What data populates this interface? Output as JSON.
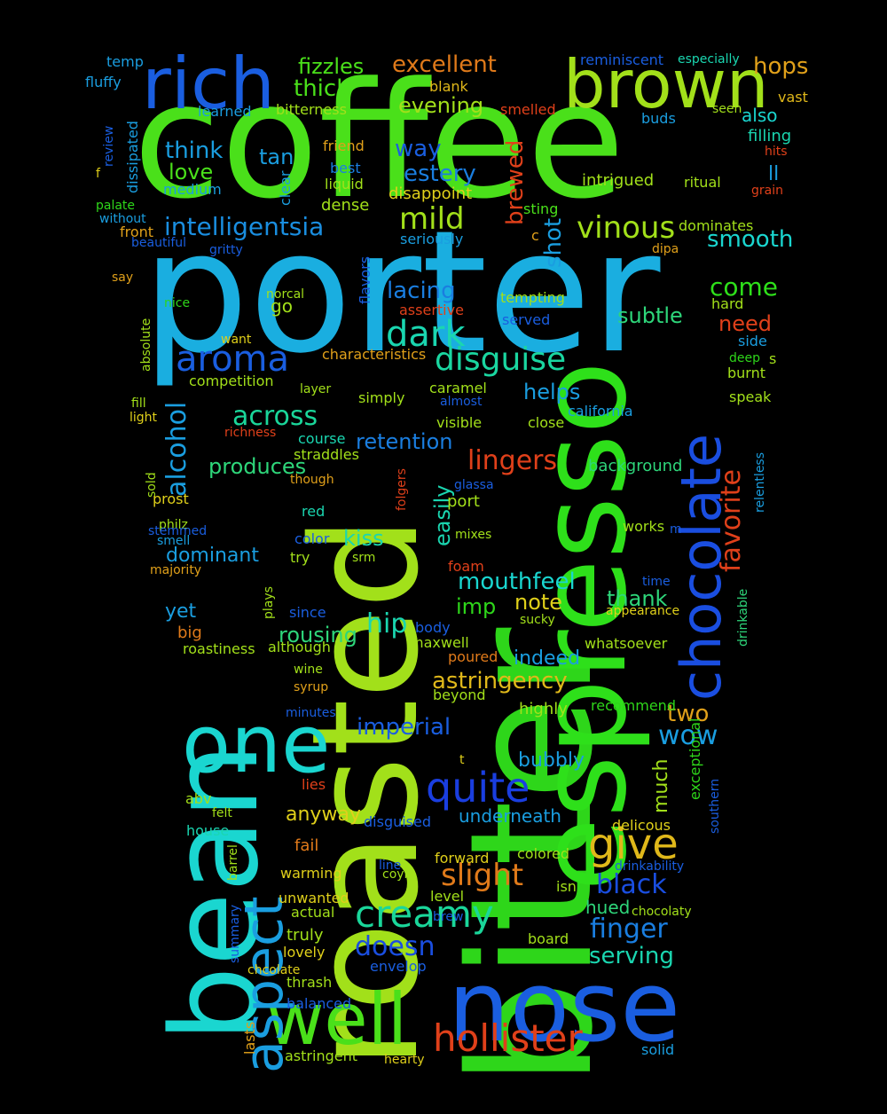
{
  "background": "#000000",
  "words": [
    {
      "text": "coffee",
      "color": "#4ae01a",
      "rotated": false
    },
    {
      "text": "porter",
      "color": "#1aaee0",
      "rotated": false
    },
    {
      "text": "bitter",
      "color": "#2ed61a",
      "rotated": true
    },
    {
      "text": "roasted",
      "color": "#a2e01a",
      "rotated": true
    },
    {
      "text": "bean",
      "color": "#1ad6d0",
      "rotated": true
    },
    {
      "text": "espresso",
      "color": "#2ee01a",
      "rotated": true
    },
    {
      "text": "nose",
      "color": "#1a5ee0",
      "rotated": false
    },
    {
      "text": "rich",
      "color": "#1a5ee0",
      "rotated": false
    },
    {
      "text": "brown",
      "color": "#a2e01a",
      "rotated": false
    },
    {
      "text": "one",
      "color": "#1ad6d0",
      "rotated": false
    },
    {
      "text": "well",
      "color": "#4ae01a",
      "rotated": false
    },
    {
      "text": "aspect",
      "color": "#1a9ee0",
      "rotated": true
    },
    {
      "text": "chocolate",
      "color": "#1a4ee0",
      "rotated": true
    },
    {
      "text": "hollister",
      "color": "#e0401a",
      "rotated": false
    },
    {
      "text": "quite",
      "color": "#1a3ee0",
      "rotated": false
    },
    {
      "text": "creamy",
      "color": "#1ad69a",
      "rotated": false
    },
    {
      "text": "give",
      "color": "#e0b81a",
      "rotated": false
    },
    {
      "text": "aroma",
      "color": "#1a5ee0",
      "rotated": false
    },
    {
      "text": "dark",
      "color": "#1ad6b0",
      "rotated": false
    },
    {
      "text": "disguise",
      "color": "#1ad6a0",
      "rotated": false
    },
    {
      "text": "intelligentsia",
      "color": "#1a8ee0",
      "rotated": false
    },
    {
      "text": "vinous",
      "color": "#a2e01a",
      "rotated": false
    },
    {
      "text": "mild",
      "color": "#a2e01a",
      "rotated": false
    },
    {
      "text": "across",
      "color": "#1ad69a",
      "rotated": false
    },
    {
      "text": "alcohol",
      "color": "#1a9ee0",
      "rotated": true
    },
    {
      "text": "lingers",
      "color": "#e0401a",
      "rotated": false
    },
    {
      "text": "favorite",
      "color": "#e0401a",
      "rotated": true
    },
    {
      "text": "slight",
      "color": "#e07a1a",
      "rotated": false
    },
    {
      "text": "black",
      "color": "#1a4ee0",
      "rotated": false
    },
    {
      "text": "finger",
      "color": "#1a7ee0",
      "rotated": false
    },
    {
      "text": "doesn",
      "color": "#1a4ee0",
      "rotated": false
    },
    {
      "text": "serving",
      "color": "#1ad6b0",
      "rotated": false
    },
    {
      "text": "wow",
      "color": "#1a9ee0",
      "rotated": false
    },
    {
      "text": "two",
      "color": "#e0a01a",
      "rotated": false
    },
    {
      "text": "astringency",
      "color": "#e0b81a",
      "rotated": false
    },
    {
      "text": "imperial",
      "color": "#1a5ee0",
      "rotated": false
    },
    {
      "text": "mouthfeel",
      "color": "#1ad6d0",
      "rotated": false
    },
    {
      "text": "excellent",
      "color": "#e07a1a",
      "rotated": false
    },
    {
      "text": "thick",
      "color": "#4ae01a",
      "rotated": false
    },
    {
      "text": "fizzles",
      "color": "#4ae01a",
      "rotated": false
    },
    {
      "text": "hops",
      "color": "#e0a01a",
      "rotated": false
    },
    {
      "text": "evening",
      "color": "#a2e01a",
      "rotated": false
    },
    {
      "text": "way",
      "color": "#1a5ee0",
      "rotated": false
    },
    {
      "text": "estery",
      "color": "#1a7ee0",
      "rotated": false
    },
    {
      "text": "think",
      "color": "#1a9ee0",
      "rotated": false
    },
    {
      "text": "love",
      "color": "#4ae01a",
      "rotated": false
    },
    {
      "text": "tan",
      "color": "#1a9ee0",
      "rotated": false
    },
    {
      "text": "smooth",
      "color": "#1ad6d0",
      "rotated": false
    },
    {
      "text": "come",
      "color": "#2ee01a",
      "rotated": false
    },
    {
      "text": "lacing",
      "color": "#1a7ee0",
      "rotated": false
    },
    {
      "text": "subtle",
      "color": "#2ed67a",
      "rotated": false
    },
    {
      "text": "need",
      "color": "#e0401a",
      "rotated": false
    },
    {
      "text": "shot",
      "color": "#1a9ee0",
      "rotated": true
    },
    {
      "text": "brewed",
      "color": "#e0401a",
      "rotated": true
    },
    {
      "text": "helps",
      "color": "#1a9ee0",
      "rotated": false
    },
    {
      "text": "retention",
      "color": "#1a7ee0",
      "rotated": false
    },
    {
      "text": "produces",
      "color": "#2ed67a",
      "rotated": false
    },
    {
      "text": "kiss",
      "color": "#1ad6b0",
      "rotated": false
    },
    {
      "text": "easily",
      "color": "#1ad6b0",
      "rotated": true
    },
    {
      "text": "dominant",
      "color": "#1a9ee0",
      "rotated": false
    },
    {
      "text": "yet",
      "color": "#1a9ee0",
      "rotated": false
    },
    {
      "text": "hip",
      "color": "#1ad6b0",
      "rotated": false
    },
    {
      "text": "rousing",
      "color": "#2ed67a",
      "rotated": false
    },
    {
      "text": "note",
      "color": "#e0d01a",
      "rotated": false
    },
    {
      "text": "thank",
      "color": "#2ed67a",
      "rotated": false
    },
    {
      "text": "indeed",
      "color": "#1a9ee0",
      "rotated": false
    },
    {
      "text": "imp",
      "color": "#2ed61a",
      "rotated": false
    },
    {
      "text": "much",
      "color": "#a2e01a",
      "rotated": true
    },
    {
      "text": "bubbly",
      "color": "#1a9ee0",
      "rotated": false
    },
    {
      "text": "anyway",
      "color": "#e0d01a",
      "rotated": false
    },
    {
      "text": "underneath",
      "color": "#1a9ee0",
      "rotated": false
    },
    {
      "text": "temp",
      "color": "#1a9ee0",
      "rotated": false
    },
    {
      "text": "fluffy",
      "color": "#1a9ee0",
      "rotated": false
    },
    {
      "text": "learned",
      "color": "#1a9ee0",
      "rotated": false
    },
    {
      "text": "bitterness",
      "color": "#a2e01a",
      "rotated": false
    },
    {
      "text": "blank",
      "color": "#e0b81a",
      "rotated": false
    },
    {
      "text": "smelled",
      "color": "#e0401a",
      "rotated": false
    },
    {
      "text": "reminiscent",
      "color": "#1a5ee0",
      "rotated": false
    },
    {
      "text": "especially",
      "color": "#1ad6b0",
      "rotated": false
    },
    {
      "text": "vast",
      "color": "#e0b81a",
      "rotated": false
    },
    {
      "text": "seen",
      "color": "#a2e01a",
      "rotated": false
    },
    {
      "text": "also",
      "color": "#1ad6d0",
      "rotated": false
    },
    {
      "text": "buds",
      "color": "#1a9ee0",
      "rotated": false
    },
    {
      "text": "filling",
      "color": "#1ad6b0",
      "rotated": false
    },
    {
      "text": "hits",
      "color": "#e0401a",
      "rotated": false
    },
    {
      "text": "ll",
      "color": "#1a9ee0",
      "rotated": false
    },
    {
      "text": "ritual",
      "color": "#a2e01a",
      "rotated": false
    },
    {
      "text": "grain",
      "color": "#e0401a",
      "rotated": false
    },
    {
      "text": "intrigued",
      "color": "#a2e01a",
      "rotated": false
    },
    {
      "text": "friend",
      "color": "#e0a01a",
      "rotated": false
    },
    {
      "text": "best",
      "color": "#1a7ee0",
      "rotated": false
    },
    {
      "text": "liquid",
      "color": "#a2e01a",
      "rotated": false
    },
    {
      "text": "clear",
      "color": "#1a9ee0",
      "rotated": true
    },
    {
      "text": "disappoint",
      "color": "#e0d01a",
      "rotated": false
    },
    {
      "text": "dense",
      "color": "#a2e01a",
      "rotated": false
    },
    {
      "text": "sting",
      "color": "#4ae01a",
      "rotated": false
    },
    {
      "text": "c",
      "color": "#e0a01a",
      "rotated": false
    },
    {
      "text": "seriously",
      "color": "#1a9ee0",
      "rotated": false
    },
    {
      "text": "dominates",
      "color": "#a2e01a",
      "rotated": false
    },
    {
      "text": "dipa",
      "color": "#e0a01a",
      "rotated": false
    },
    {
      "text": "review",
      "color": "#1a5ee0",
      "rotated": true
    },
    {
      "text": "dissipated",
      "color": "#1a9ee0",
      "rotated": true
    },
    {
      "text": "f",
      "color": "#e0d01a",
      "rotated": false
    },
    {
      "text": "medium",
      "color": "#1a9ee0",
      "rotated": false
    },
    {
      "text": "palate",
      "color": "#2ed61a",
      "rotated": false
    },
    {
      "text": "without",
      "color": "#1a9ee0",
      "rotated": false
    },
    {
      "text": "front",
      "color": "#e0a01a",
      "rotated": false
    },
    {
      "text": "beautiful",
      "color": "#1a5ee0",
      "rotated": false
    },
    {
      "text": "gritty",
      "color": "#1a5ee0",
      "rotated": false
    },
    {
      "text": "say",
      "color": "#e0a01a",
      "rotated": false
    },
    {
      "text": "nice",
      "color": "#2ed61a",
      "rotated": false
    },
    {
      "text": "norcal",
      "color": "#a2e01a",
      "rotated": false
    },
    {
      "text": "flavors",
      "color": "#1a5ee0",
      "rotated": true
    },
    {
      "text": "assertive",
      "color": "#e0401a",
      "rotated": false
    },
    {
      "text": "go",
      "color": "#a2e01a",
      "rotated": false
    },
    {
      "text": "tempting",
      "color": "#a2e01a",
      "rotated": false
    },
    {
      "text": "served",
      "color": "#1a5ee0",
      "rotated": false
    },
    {
      "text": "hard",
      "color": "#a2e01a",
      "rotated": false
    },
    {
      "text": "side",
      "color": "#1a9ee0",
      "rotated": false
    },
    {
      "text": "deep",
      "color": "#2ed61a",
      "rotated": false
    },
    {
      "text": "s",
      "color": "#a2e01a",
      "rotated": false
    },
    {
      "text": "absolute",
      "color": "#a2e01a",
      "rotated": true
    },
    {
      "text": "want",
      "color": "#e0d01a",
      "rotated": false
    },
    {
      "text": "characteristics",
      "color": "#e0a01a",
      "rotated": false
    },
    {
      "text": "competition",
      "color": "#a2e01a",
      "rotated": false
    },
    {
      "text": "layer",
      "color": "#a2e01a",
      "rotated": false
    },
    {
      "text": "simply",
      "color": "#a2e01a",
      "rotated": false
    },
    {
      "text": "caramel",
      "color": "#a2e01a",
      "rotated": false
    },
    {
      "text": "almost",
      "color": "#1a5ee0",
      "rotated": false
    },
    {
      "text": "burnt",
      "color": "#a2e01a",
      "rotated": false
    },
    {
      "text": "speak",
      "color": "#a2e01a",
      "rotated": false
    },
    {
      "text": "fill",
      "color": "#a2e01a",
      "rotated": false
    },
    {
      "text": "light",
      "color": "#e0d01a",
      "rotated": false
    },
    {
      "text": "california",
      "color": "#1a9ee0",
      "rotated": false
    },
    {
      "text": "visible",
      "color": "#a2e01a",
      "rotated": false
    },
    {
      "text": "close",
      "color": "#a2e01a",
      "rotated": false
    },
    {
      "text": "richness",
      "color": "#e0401a",
      "rotated": false
    },
    {
      "text": "course",
      "color": "#1ad6b0",
      "rotated": false
    },
    {
      "text": "straddles",
      "color": "#a2e01a",
      "rotated": false
    },
    {
      "text": "relentless",
      "color": "#1a9ee0",
      "rotated": true
    },
    {
      "text": "sold",
      "color": "#a2e01a",
      "rotated": true
    },
    {
      "text": "though",
      "color": "#e0a01a",
      "rotated": false
    },
    {
      "text": "folgers",
      "color": "#e0401a",
      "rotated": true
    },
    {
      "text": "glassa",
      "color": "#1a5ee0",
      "rotated": false
    },
    {
      "text": "background",
      "color": "#2ed67a",
      "rotated": false
    },
    {
      "text": "prost",
      "color": "#e0d01a",
      "rotated": false
    },
    {
      "text": "philz",
      "color": "#a2e01a",
      "rotated": false
    },
    {
      "text": "port",
      "color": "#a2e01a",
      "rotated": false
    },
    {
      "text": "red",
      "color": "#1ad6b0",
      "rotated": false
    },
    {
      "text": "stemmed",
      "color": "#1a5ee0",
      "rotated": false
    },
    {
      "text": "smell",
      "color": "#1a9ee0",
      "rotated": false
    },
    {
      "text": "color",
      "color": "#1a5ee0",
      "rotated": false
    },
    {
      "text": "mixes",
      "color": "#a2e01a",
      "rotated": false
    },
    {
      "text": "works",
      "color": "#a2e01a",
      "rotated": false
    },
    {
      "text": "m",
      "color": "#1a5ee0",
      "rotated": false
    },
    {
      "text": "majority",
      "color": "#e0a01a",
      "rotated": false
    },
    {
      "text": "try",
      "color": "#a2e01a",
      "rotated": false
    },
    {
      "text": "srm",
      "color": "#a2e01a",
      "rotated": false
    },
    {
      "text": "foam",
      "color": "#e0401a",
      "rotated": false
    },
    {
      "text": "time",
      "color": "#1a5ee0",
      "rotated": false
    },
    {
      "text": "plays",
      "color": "#a2e01a",
      "rotated": true
    },
    {
      "text": "since",
      "color": "#1a5ee0",
      "rotated": false
    },
    {
      "text": "body",
      "color": "#1a5ee0",
      "rotated": false
    },
    {
      "text": "sucky",
      "color": "#a2e01a",
      "rotated": false
    },
    {
      "text": "appearance",
      "color": "#e0d01a",
      "rotated": false
    },
    {
      "text": "drinkable",
      "color": "#2ed67a",
      "rotated": true
    },
    {
      "text": "big",
      "color": "#e07a1a",
      "rotated": false
    },
    {
      "text": "roastiness",
      "color": "#a2e01a",
      "rotated": false
    },
    {
      "text": "although",
      "color": "#a2e01a",
      "rotated": false
    },
    {
      "text": "maxwell",
      "color": "#a2e01a",
      "rotated": false
    },
    {
      "text": "whatsoever",
      "color": "#a2e01a",
      "rotated": false
    },
    {
      "text": "poured",
      "color": "#e07a1a",
      "rotated": false
    },
    {
      "text": "wine",
      "color": "#a2e01a",
      "rotated": false
    },
    {
      "text": "syrup",
      "color": "#e0a01a",
      "rotated": false
    },
    {
      "text": "beyond",
      "color": "#a2e01a",
      "rotated": false
    },
    {
      "text": "highly",
      "color": "#a2e01a",
      "rotated": false
    },
    {
      "text": "recommend",
      "color": "#2ed61a",
      "rotated": false
    },
    {
      "text": "minutes",
      "color": "#1a5ee0",
      "rotated": false
    },
    {
      "text": "t",
      "color": "#e0d01a",
      "rotated": false
    },
    {
      "text": "exceptional",
      "color": "#2ed61a",
      "rotated": true
    },
    {
      "text": "southern",
      "color": "#1a5ee0",
      "rotated": true
    },
    {
      "text": "lies",
      "color": "#e0401a",
      "rotated": false
    },
    {
      "text": "abv",
      "color": "#a2e01a",
      "rotated": false
    },
    {
      "text": "felt",
      "color": "#a2e01a",
      "rotated": false
    },
    {
      "text": "delicous",
      "color": "#e0d01a",
      "rotated": false
    },
    {
      "text": "disguised",
      "color": "#1a5ee0",
      "rotated": false
    },
    {
      "text": "house",
      "color": "#1ad6b0",
      "rotated": false
    },
    {
      "text": "fail",
      "color": "#e07a1a",
      "rotated": false
    },
    {
      "text": "barrel",
      "color": "#a2e01a",
      "rotated": true
    },
    {
      "text": "warming",
      "color": "#e0d01a",
      "rotated": false
    },
    {
      "text": "line",
      "color": "#1a5ee0",
      "rotated": false
    },
    {
      "text": "coyly",
      "color": "#a2e01a",
      "rotated": false
    },
    {
      "text": "forward",
      "color": "#e0d01a",
      "rotated": false
    },
    {
      "text": "colored",
      "color": "#a2e01a",
      "rotated": false
    },
    {
      "text": "drinkability",
      "color": "#1a5ee0",
      "rotated": false
    },
    {
      "text": "isn",
      "color": "#a2e01a",
      "rotated": false
    },
    {
      "text": "unwanted",
      "color": "#e0d01a",
      "rotated": false
    },
    {
      "text": "level",
      "color": "#a2e01a",
      "rotated": false
    },
    {
      "text": "hued",
      "color": "#2ed67a",
      "rotated": false
    },
    {
      "text": "actual",
      "color": "#a2e01a",
      "rotated": false
    },
    {
      "text": "brew",
      "color": "#1a5ee0",
      "rotated": false
    },
    {
      "text": "chocolaty",
      "color": "#a2e01a",
      "rotated": false
    },
    {
      "text": "summary",
      "color": "#1a5ee0",
      "rotated": true
    },
    {
      "text": "truly",
      "color": "#a2e01a",
      "rotated": false
    },
    {
      "text": "board",
      "color": "#a2e01a",
      "rotated": false
    },
    {
      "text": "lovely",
      "color": "#e0d01a",
      "rotated": false
    },
    {
      "text": "envelop",
      "color": "#1a5ee0",
      "rotated": false
    },
    {
      "text": "chcolate",
      "color": "#e0d01a",
      "rotated": false
    },
    {
      "text": "thrash",
      "color": "#a2e01a",
      "rotated": false
    },
    {
      "text": "balanced",
      "color": "#1a5ee0",
      "rotated": false
    },
    {
      "text": "lasts",
      "color": "#e0a01a",
      "rotated": true
    },
    {
      "text": "astringent",
      "color": "#a2e01a",
      "rotated": false
    },
    {
      "text": "hearty",
      "color": "#e0d01a",
      "rotated": false
    },
    {
      "text": "solid",
      "color": "#1a9ee0",
      "rotated": false
    }
  ]
}
